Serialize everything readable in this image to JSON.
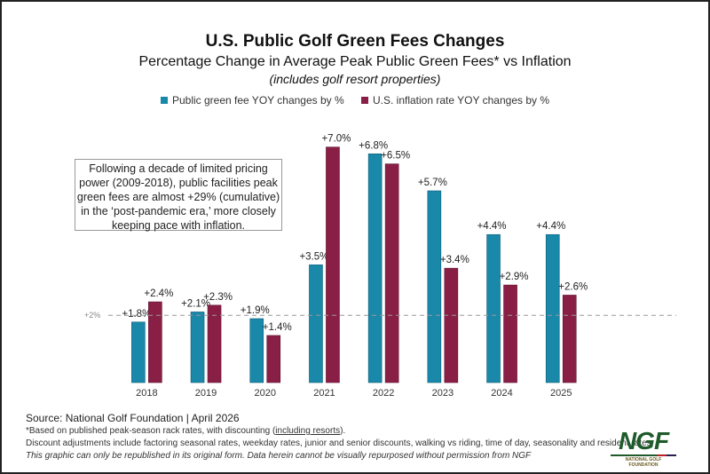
{
  "header": {
    "title": "U.S. Public Golf Green Fees Changes",
    "subtitle": "Percentage Change in Average Peak Public Green Fees* vs Inflation",
    "note": "(includes golf resort properties)"
  },
  "callout": "Following a decade of limited pricing power (2009-2018), public facilities peak green fees are almost +29% (cumulative) in the ‘post-pandemic era,’ more closely keeping pace with inflation.",
  "footer": {
    "source": "Source: National Golf Foundation | April 2026",
    "footnote_prefix": "*Based on published peak-season rack rates, with discounting (",
    "footnote_link": "including resorts",
    "footnote_suffix": ").",
    "discount": "Discount adjustments include factoring seasonal rates, weekday rates, junior and senior discounts, walking vs riding, time of day, seasonality and resident rates.",
    "disclaimer": "This graphic can only be republished in its original form. Data herein cannot be visually repurposed without permission from NGF"
  },
  "logo": {
    "text": "NGF",
    "subtext": "NATIONAL GOLF FOUNDATION"
  },
  "chart_data": {
    "type": "bar",
    "title": "U.S. Public Golf Green Fees Changes",
    "categories": [
      "2018",
      "2019",
      "2020",
      "2021",
      "2022",
      "2023",
      "2024",
      "2025"
    ],
    "series": [
      {
        "name": "Public green fee YOY changes by %",
        "color": "#1a88a9",
        "values": [
          1.8,
          2.1,
          1.9,
          3.5,
          6.8,
          5.7,
          4.4,
          4.4
        ],
        "labels": [
          "+1.8%",
          "+2.1%",
          "+1.9%",
          "+3.5%",
          "+6.8%",
          "+5.7%",
          "+4.4%",
          "+4.4%"
        ]
      },
      {
        "name": "U.S. inflation rate YOY changes by %",
        "color": "#8a1f46",
        "values": [
          2.4,
          2.3,
          1.4,
          7.0,
          6.5,
          3.4,
          2.9,
          2.6
        ],
        "labels": [
          "+2.4%",
          "+2.3%",
          "+1.4%",
          "+7.0%",
          "+6.5%",
          "+3.4%",
          "+2.9%",
          "+2.6%"
        ]
      }
    ],
    "reference_line": {
      "value": 2,
      "label": "+2%"
    },
    "ylim": [
      0,
      7.5
    ],
    "grid": false,
    "legend_position": "top"
  }
}
